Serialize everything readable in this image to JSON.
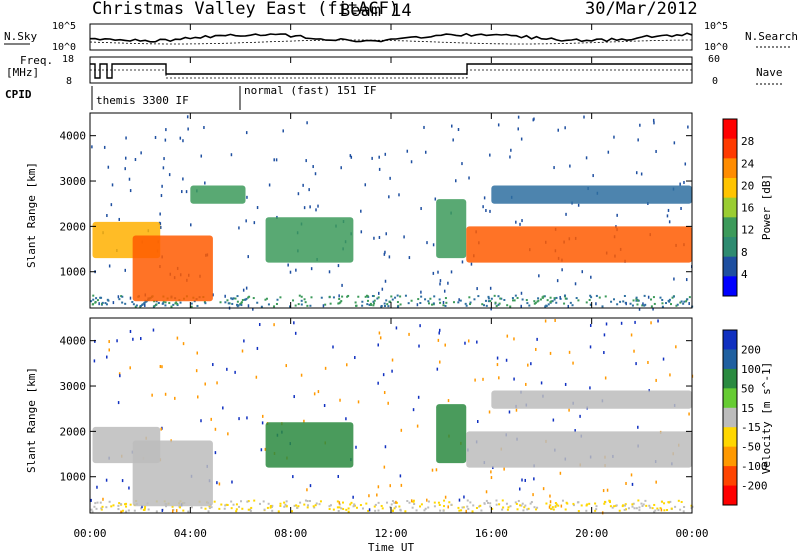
{
  "header": {
    "title": "Christmas Valley East (fitACF)",
    "beam": "Beam 14",
    "date": "30/Mar/2012"
  },
  "side_labels": {
    "n_sky": "N.Sky",
    "n_search": "N.Search",
    "freq": "Freq.",
    "freq_unit": "[MHz]",
    "nave": "Nave",
    "cpid": "CPID"
  },
  "cpid_segments": [
    {
      "label": "themis 3300 IF",
      "start_hour": 0.5,
      "end_hour": 6.0
    },
    {
      "label": "normal (fast) 151 IF",
      "start_hour": 6.0,
      "end_hour": 24.0
    }
  ],
  "noise_axis": {
    "left_ticks": [
      "10^5",
      "10^0"
    ],
    "right_ticks": [
      "10^5",
      "10^0"
    ]
  },
  "freq_axis": {
    "left_ticks": [
      "18",
      "8"
    ],
    "right_ticks": [
      "60",
      "0"
    ]
  },
  "power_colorbar": {
    "label": "Power [dB]",
    "ticks": [
      "28",
      "24",
      "20",
      "16",
      "12",
      "8",
      "4"
    ],
    "colors": [
      "#ff0000",
      "#ff3a00",
      "#ff8c00",
      "#ffc400",
      "#9acd32",
      "#3c9a5a",
      "#2e8b70",
      "#1e4fa0",
      "#0000ff"
    ]
  },
  "velocity_colorbar": {
    "label": "Velocity [m s^-1]",
    "ticks": [
      "200",
      "100",
      "50",
      "15",
      "-15",
      "-50",
      "-100",
      "-200"
    ],
    "colors": [
      "#1030c0",
      "#2060a0",
      "#2a8a40",
      "#66cc33",
      "#bcbcbc",
      "#ffd700",
      "#ff9900",
      "#ff4400",
      "#ff0000"
    ]
  },
  "chart_data": {
    "type": "heatmap",
    "xlabel": "Time UT",
    "x_ticks": [
      "00:00",
      "04:00",
      "08:00",
      "12:00",
      "16:00",
      "20:00",
      "00:00"
    ],
    "xlim_hours": [
      0,
      24
    ],
    "ylabel": "Slant Range [km]",
    "y_ticks": [
      1000,
      2000,
      3000,
      4000
    ],
    "ylim_km": [
      200,
      4500
    ],
    "panels": [
      {
        "name": "power",
        "regions": [
          {
            "t0": 0.1,
            "t1": 2.8,
            "r0": 1300,
            "r1": 2100,
            "level": 20
          },
          {
            "t0": 1.7,
            "t1": 4.9,
            "r0": 350,
            "r1": 1800,
            "level": 24
          },
          {
            "t0": 4.0,
            "t1": 6.2,
            "r0": 2500,
            "r1": 2900,
            "level": 12
          },
          {
            "t0": 7.0,
            "t1": 10.5,
            "r0": 1200,
            "r1": 2200,
            "level": 12
          },
          {
            "t0": 13.8,
            "t1": 15.0,
            "r0": 1300,
            "r1": 2600,
            "level": 12
          },
          {
            "t0": 15.0,
            "t1": 24.0,
            "r0": 1200,
            "r1": 2000,
            "level": 24
          },
          {
            "t0": 16.0,
            "t1": 24.0,
            "r0": 2500,
            "r1": 2900,
            "level": 8
          }
        ]
      },
      {
        "name": "velocity",
        "regions": [
          {
            "t0": 0.1,
            "t1": 2.8,
            "r0": 1300,
            "r1": 2100,
            "level": 0
          },
          {
            "t0": 1.7,
            "t1": 4.9,
            "r0": 350,
            "r1": 1800,
            "level": 0
          },
          {
            "t0": 7.0,
            "t1": 10.5,
            "r0": 1200,
            "r1": 2200,
            "level": 60
          },
          {
            "t0": 13.8,
            "t1": 15.0,
            "r0": 1300,
            "r1": 2600,
            "level": 40
          },
          {
            "t0": 15.0,
            "t1": 24.0,
            "r0": 1200,
            "r1": 2000,
            "level": 0
          },
          {
            "t0": 16.0,
            "t1": 24.0,
            "r0": 2500,
            "r1": 2900,
            "level": 0
          }
        ]
      }
    ]
  }
}
